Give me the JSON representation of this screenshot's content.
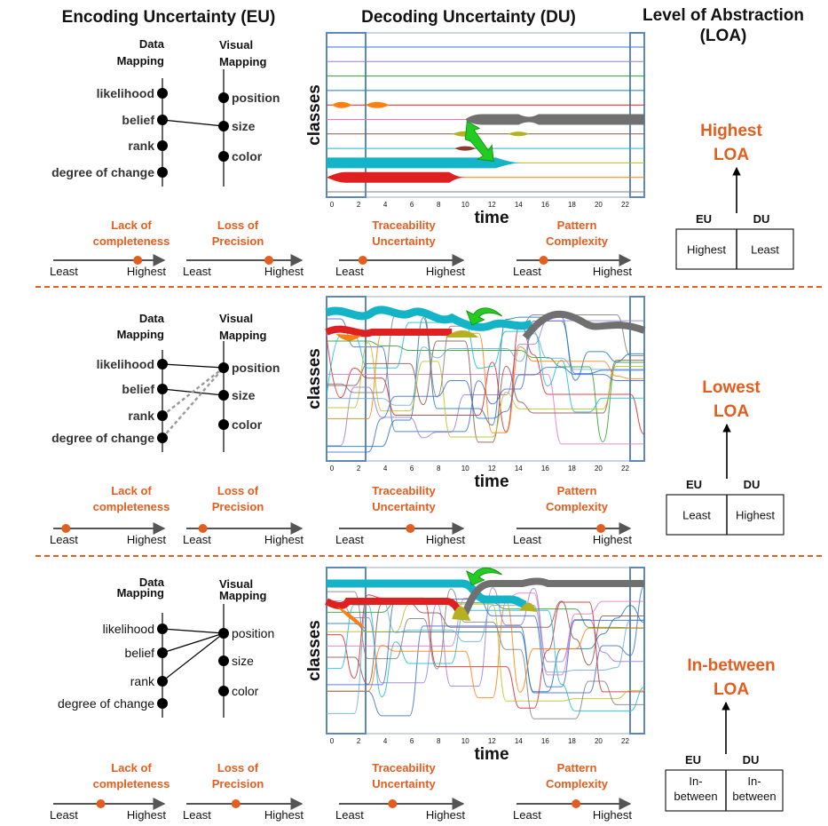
{
  "headers": {
    "eu": "Encoding Uncertainty (EU)",
    "du": "Decoding Uncertainty (DU)",
    "loa_line1": "Level of Abstraction",
    "loa_line2": "(LOA)"
  },
  "mapping_labels": {
    "data_line1": "Data",
    "data_line2": "Mapping",
    "visual_line1": "Visual",
    "visual_line2": "Mapping"
  },
  "data_items": [
    "likelihood",
    "belief",
    "rank",
    "degree of change"
  ],
  "visual_items": [
    "position",
    "size",
    "color"
  ],
  "chart_labels": {
    "y": "classes",
    "x": "time",
    "ticks": [
      "0",
      "2",
      "4",
      "6",
      "8",
      "10",
      "12",
      "14",
      "16",
      "18",
      "20",
      "22"
    ]
  },
  "metric_labels": {
    "completeness_1": "Lack of",
    "completeness_2": "completeness",
    "precision_1": "Loss of",
    "precision_2": "Precision",
    "traceability_1": "Traceability",
    "traceability_2": "Uncertainty",
    "pattern_1": "Pattern",
    "pattern_2": "Complexity",
    "least": "Least",
    "highest": "Highest"
  },
  "loa_box_headers": {
    "eu": "EU",
    "du": "DU"
  },
  "rows": [
    {
      "loa_1": "Highest",
      "loa_2": "LOA",
      "eu_value": [
        "Highest"
      ],
      "du_value": [
        "Least"
      ],
      "sliders": {
        "completeness": 0.8,
        "precision": 0.75,
        "traceability": 0.2,
        "pattern": 0.25
      },
      "connections": [
        [
          1,
          1
        ]
      ],
      "dashed_connections": []
    },
    {
      "loa_1": "Lowest",
      "loa_2": "LOA",
      "eu_value": [
        "Least"
      ],
      "du_value": [
        "Highest"
      ],
      "sliders": {
        "completeness": 0.12,
        "precision": 0.15,
        "traceability": 0.6,
        "pattern": 0.78
      },
      "connections": [
        [
          0,
          0
        ],
        [
          1,
          1
        ]
      ],
      "dashed_connections": [
        [
          2,
          0
        ],
        [
          3,
          0
        ]
      ]
    },
    {
      "loa_1": "In-between",
      "loa_2": "LOA",
      "eu_value": [
        "In-",
        "between"
      ],
      "du_value": [
        "In-",
        "between"
      ],
      "sliders": {
        "completeness": 0.45,
        "precision": 0.45,
        "traceability": 0.45,
        "pattern": 0.55
      },
      "connections": [
        [
          0,
          0
        ],
        [
          1,
          0
        ],
        [
          2,
          0
        ]
      ],
      "dashed_connections": []
    }
  ],
  "colors": {
    "accent": "#e35d1f",
    "cyan": "#14b4c8",
    "red": "#e02020",
    "gray": "#707070",
    "olive": "#b5b020",
    "green": "#22cc22"
  }
}
